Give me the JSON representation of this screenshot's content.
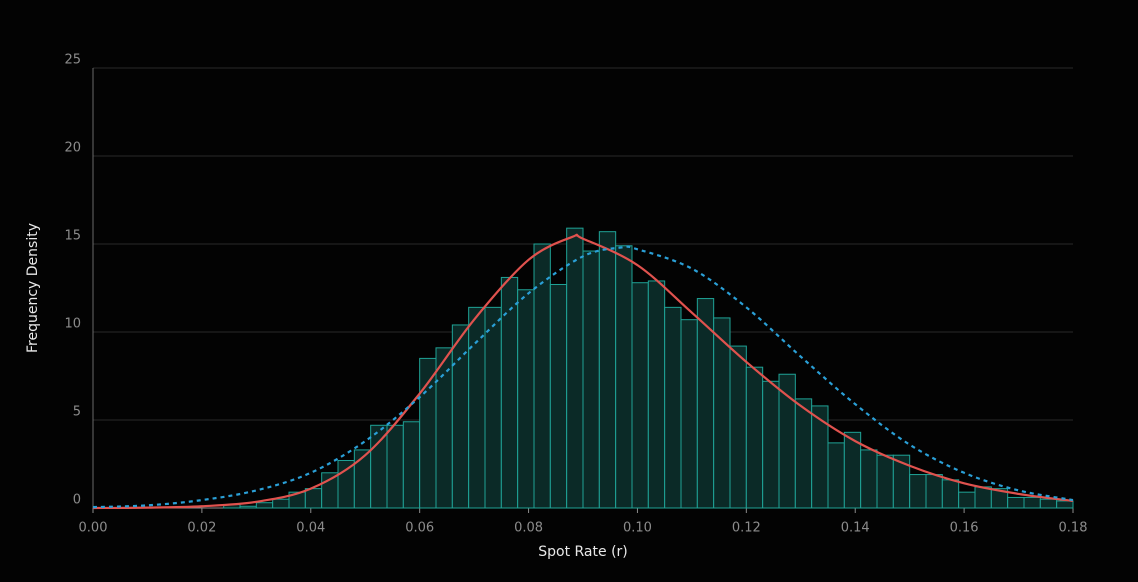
{
  "chart_data": {
    "type": "histogram",
    "xlabel": "Spot Rate (r)",
    "ylabel": "Frequency Density",
    "bins": [
      0.024,
      0.027,
      0.03,
      0.033,
      0.036,
      0.039,
      0.042,
      0.045,
      0.048,
      0.051,
      0.054,
      0.057,
      0.06,
      0.063,
      0.066,
      0.069,
      0.072,
      0.075,
      0.078,
      0.081,
      0.084,
      0.087,
      0.09,
      0.093,
      0.096,
      0.099,
      0.102,
      0.105,
      0.108,
      0.111,
      0.114,
      0.117,
      0.12,
      0.123,
      0.126,
      0.129,
      0.132,
      0.135,
      0.138,
      0.141,
      0.144,
      0.147,
      0.15,
      0.153,
      0.156,
      0.159,
      0.162,
      0.165,
      0.168,
      0.171,
      0.174,
      0.177,
      0.18
    ],
    "values": [
      0.2,
      0.1,
      0.3,
      0.5,
      0.9,
      1.1,
      2.0,
      2.7,
      3.3,
      4.7,
      4.7,
      4.9,
      8.5,
      9.1,
      10.4,
      11.4,
      11.4,
      13.1,
      12.4,
      15.0,
      12.7,
      15.9,
      14.6,
      15.7,
      14.9,
      12.8,
      12.9,
      11.4,
      10.7,
      11.9,
      10.8,
      9.2,
      8.0,
      7.2,
      7.6,
      6.2,
      5.8,
      3.7,
      4.3,
      3.3,
      3.0,
      3.0,
      1.9,
      1.9,
      1.6,
      0.9,
      1.2,
      1.1,
      0.6,
      0.6,
      0.5,
      0.4
    ],
    "color": "#0b2a27",
    "edgecolor": "#1fa396",
    "series": [
      {
        "color": "#e0524e",
        "dashed": false,
        "x": [
          0,
          0.01,
          0.02,
          0.03,
          0.04,
          0.05,
          0.06,
          0.07,
          0.08,
          0.088,
          0.09,
          0.1,
          0.11,
          0.12,
          0.13,
          0.14,
          0.15,
          0.16,
          0.17,
          0.18
        ],
        "values": [
          0,
          0.02,
          0.1,
          0.35,
          1.1,
          3.0,
          6.5,
          10.7,
          14.1,
          15.4,
          15.3,
          13.8,
          11.1,
          8.3,
          5.8,
          3.8,
          2.4,
          1.4,
          0.8,
          0.4
        ]
      },
      {
        "color": "#2a9fd6",
        "dashed": true,
        "x": [
          0,
          0.01,
          0.02,
          0.03,
          0.04,
          0.05,
          0.06,
          0.07,
          0.08,
          0.09,
          0.097,
          0.1,
          0.11,
          0.12,
          0.13,
          0.14,
          0.15,
          0.16,
          0.17,
          0.18
        ],
        "values": [
          0.05,
          0.15,
          0.45,
          1.0,
          2.0,
          3.8,
          6.3,
          9.3,
          12.2,
          14.3,
          14.8,
          14.7,
          13.6,
          11.4,
          8.6,
          5.9,
          3.6,
          2.0,
          1.0,
          0.45
        ]
      }
    ],
    "xlim": [
      0,
      0.18
    ],
    "ylim": [
      0,
      25
    ],
    "xticks": [
      {
        "value": 0,
        "label": "0.00"
      },
      {
        "value": 0.02,
        "label": "0.02"
      },
      {
        "value": 0.04,
        "label": "0.04"
      },
      {
        "value": 0.06,
        "label": "0.06"
      },
      {
        "value": 0.08,
        "label": "0.08"
      },
      {
        "value": 0.1,
        "label": "0.10"
      },
      {
        "value": 0.12,
        "label": "0.12"
      },
      {
        "value": 0.14,
        "label": "0.14"
      },
      {
        "value": 0.16,
        "label": "0.16"
      },
      {
        "value": 0.18,
        "label": "0.18"
      }
    ],
    "yticks": [
      0,
      5,
      10,
      15,
      20,
      25
    ],
    "grid": true
  }
}
